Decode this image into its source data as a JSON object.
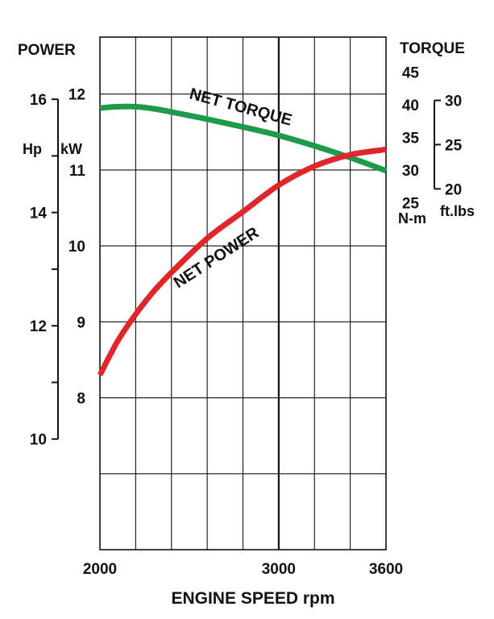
{
  "chart_data": {
    "type": "line",
    "title": "",
    "xlabel": "ENGINE SPEED rpm",
    "xlim": [
      2000,
      3600
    ],
    "x_ticks": [
      "2000",
      "3000",
      "3600"
    ],
    "left_axis": {
      "title": "POWER",
      "kw_label": "kW",
      "hp_label": "Hp",
      "kw_range": [
        6,
        12.75
      ],
      "kw_ticks": [
        "8",
        "9",
        "10",
        "11",
        "12"
      ],
      "hp_ticks": [
        "10",
        "12",
        "14",
        "16"
      ]
    },
    "right_axis": {
      "title": "TORQUE",
      "nm_label": "N-m",
      "ftlb_label": "ft.lbs",
      "nm_range": [
        25,
        45
      ],
      "nm_ticks": [
        "25",
        "30",
        "35",
        "40",
        "45"
      ],
      "ftlb_ticks": [
        "20",
        "25",
        "30"
      ]
    },
    "grid": true,
    "series": [
      {
        "name": "NET TORQUE",
        "axis": "torque_nm",
        "color": "#1e9b4a",
        "x": [
          2000,
          2100,
          2200,
          2300,
          2400,
          2600,
          2800,
          3000,
          3200,
          3400,
          3600
        ],
        "values": [
          39.5,
          39.7,
          39.7,
          39.4,
          38.9,
          37.8,
          36.6,
          35.3,
          33.7,
          31.9,
          29.9
        ]
      },
      {
        "name": "NET POWER",
        "axis": "power_kw",
        "color": "#e0262a",
        "x": [
          2000,
          2100,
          2200,
          2300,
          2400,
          2600,
          2800,
          3000,
          3200,
          3400,
          3600
        ],
        "values": [
          8.3,
          8.75,
          9.1,
          9.4,
          9.65,
          10.1,
          10.45,
          10.8,
          11.05,
          11.2,
          11.27
        ]
      }
    ]
  }
}
